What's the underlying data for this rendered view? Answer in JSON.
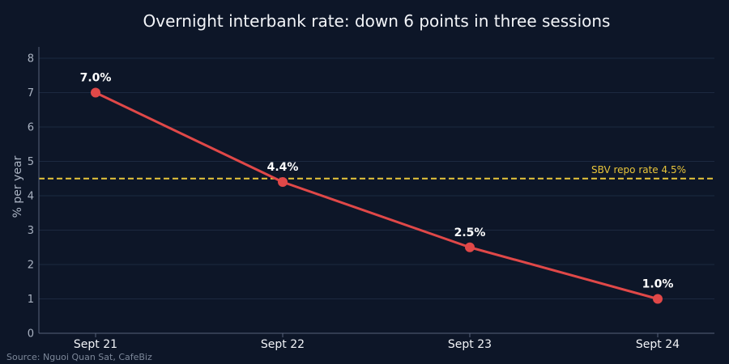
{
  "chart_data": {
    "type": "line",
    "title": "Overnight interbank rate: down 6 points in three sessions",
    "ylabel": "% per year",
    "xlabel": "",
    "categories": [
      "Sept 21",
      "Sept 22",
      "Sept 23",
      "Sept 24"
    ],
    "series": [
      {
        "values": [
          7.0,
          4.4,
          2.5,
          1.0
        ],
        "labels": [
          "7.0%",
          "4.4%",
          "2.5%",
          "1.0%"
        ],
        "color": "#e04848"
      }
    ],
    "ylim": [
      0,
      8
    ],
    "yticks": [
      0,
      1,
      2,
      3,
      4,
      5,
      6,
      7,
      8
    ],
    "grid": true,
    "reference_line": {
      "value": 4.5,
      "label": "SBV repo rate 4.5%",
      "color": "#e8c53a",
      "style": "dashed"
    },
    "source": "Source: Nguoi Quan Sat, CafeBiz"
  }
}
